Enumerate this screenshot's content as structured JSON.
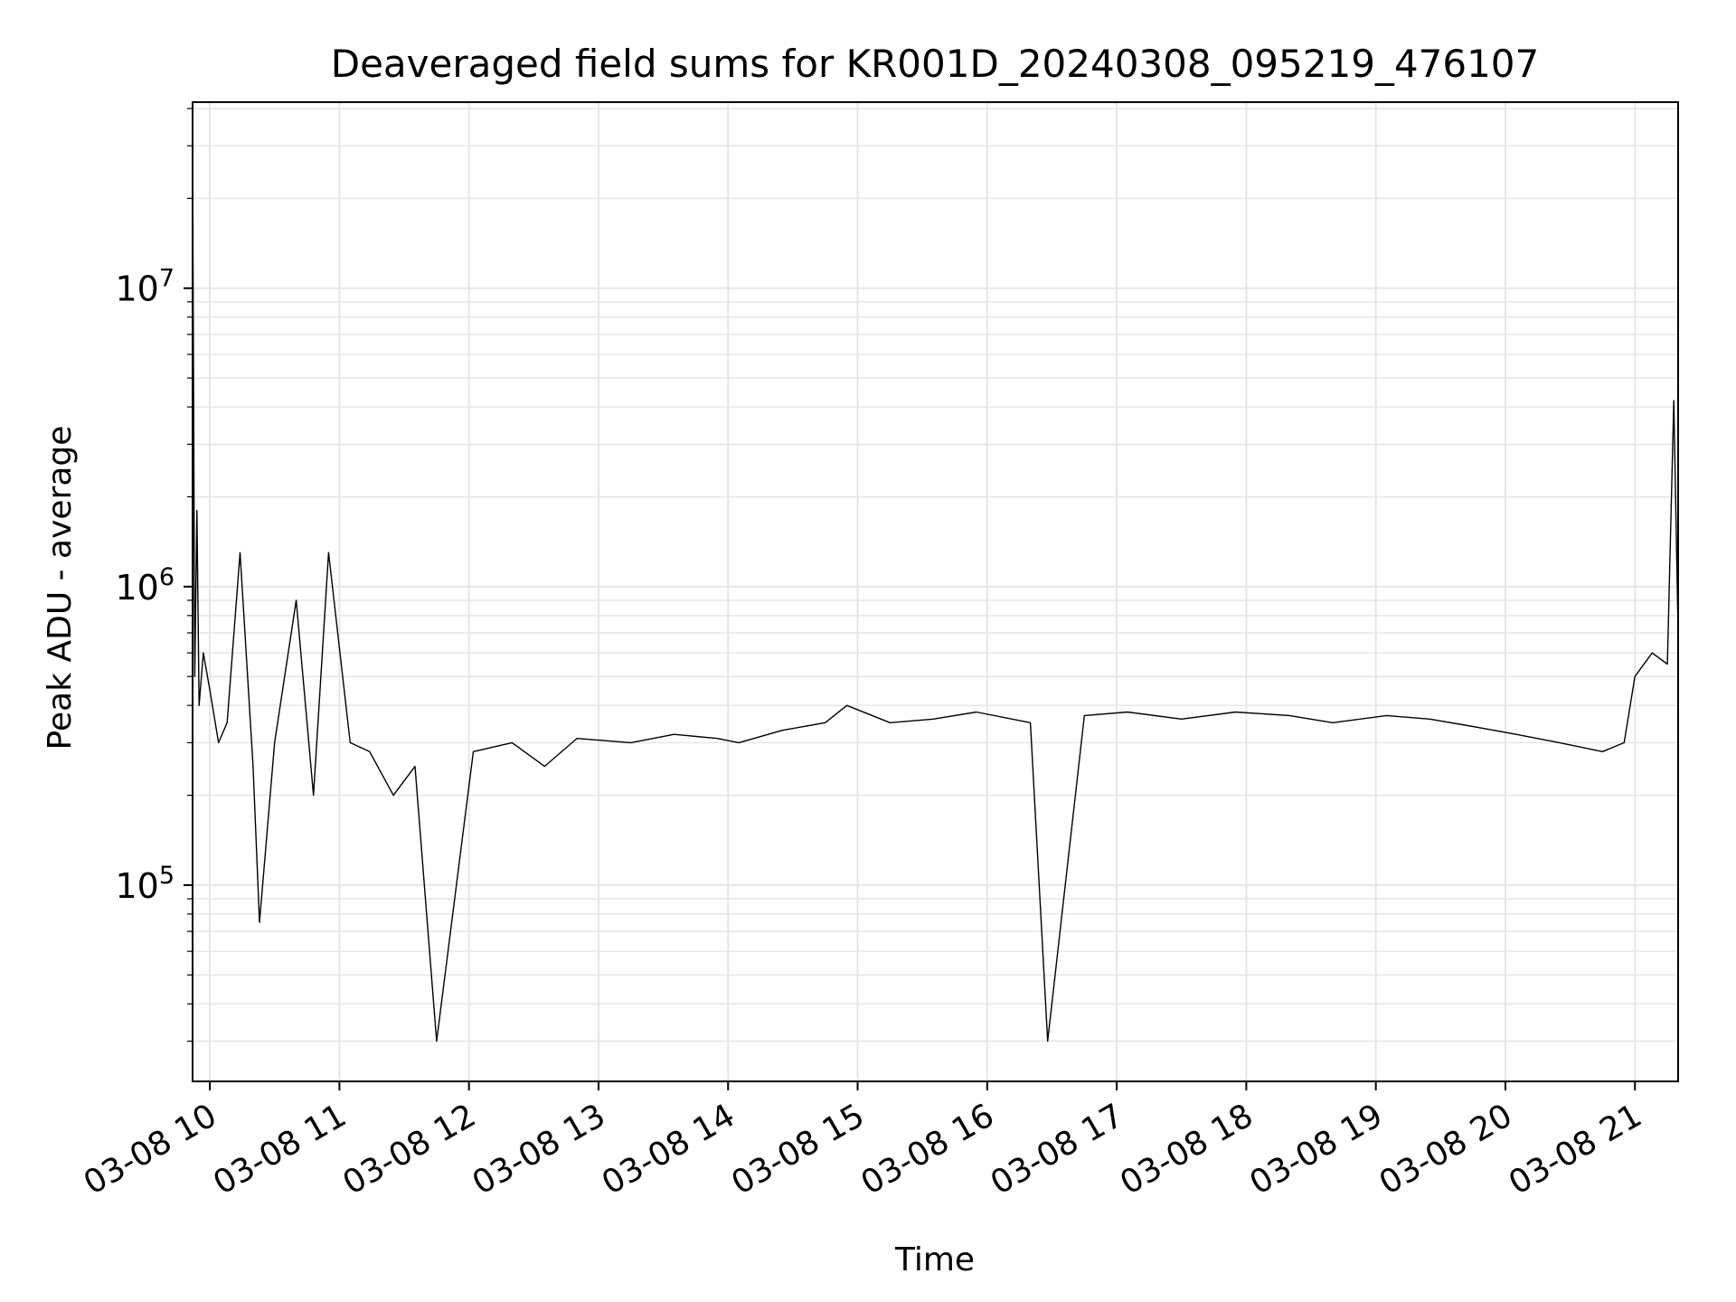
{
  "chart_data": {
    "type": "line",
    "title": "Deaveraged field sums for KR001D_20240308_095219_476107",
    "xlabel": "Time",
    "ylabel": "Peak ADU - average",
    "yscale": "log",
    "grid": true,
    "grid_minor": true,
    "line_color": "#000000",
    "grid_color": "#e6e6e6",
    "xlim": [
      "2024-03-08 09:52",
      "2024-03-08 21:20"
    ],
    "ylim": [
      22000,
      42000000
    ],
    "x_ticks": [
      {
        "t": "2024-03-08 10:00",
        "label": "03-08 10"
      },
      {
        "t": "2024-03-08 11:00",
        "label": "03-08 11"
      },
      {
        "t": "2024-03-08 12:00",
        "label": "03-08 12"
      },
      {
        "t": "2024-03-08 13:00",
        "label": "03-08 13"
      },
      {
        "t": "2024-03-08 14:00",
        "label": "03-08 14"
      },
      {
        "t": "2024-03-08 15:00",
        "label": "03-08 15"
      },
      {
        "t": "2024-03-08 16:00",
        "label": "03-08 16"
      },
      {
        "t": "2024-03-08 17:00",
        "label": "03-08 17"
      },
      {
        "t": "2024-03-08 18:00",
        "label": "03-08 18"
      },
      {
        "t": "2024-03-08 19:00",
        "label": "03-08 19"
      },
      {
        "t": "2024-03-08 20:00",
        "label": "03-08 20"
      },
      {
        "t": "2024-03-08 21:00",
        "label": "03-08 21"
      }
    ],
    "y_ticks": [
      {
        "value": 100000,
        "base": "10",
        "exp": "5"
      },
      {
        "value": 1000000,
        "base": "10",
        "exp": "6"
      },
      {
        "value": 10000000,
        "base": "10",
        "exp": "7"
      }
    ],
    "series": [
      {
        "x": [
          "2024-03-08 09:52",
          "2024-03-08 09:53",
          "2024-03-08 09:54",
          "2024-03-08 09:55",
          "2024-03-08 09:57",
          "2024-03-08 10:00",
          "2024-03-08 10:04",
          "2024-03-08 10:08",
          "2024-03-08 10:14",
          "2024-03-08 10:20",
          "2024-03-08 10:23",
          "2024-03-08 10:30",
          "2024-03-08 10:40",
          "2024-03-08 10:48",
          "2024-03-08 10:55",
          "2024-03-08 11:05",
          "2024-03-08 11:14",
          "2024-03-08 11:25",
          "2024-03-08 11:35",
          "2024-03-08 11:45",
          "2024-03-08 12:02",
          "2024-03-08 12:20",
          "2024-03-08 12:35",
          "2024-03-08 12:50",
          "2024-03-08 13:15",
          "2024-03-08 13:35",
          "2024-03-08 13:55",
          "2024-03-08 14:05",
          "2024-03-08 14:25",
          "2024-03-08 14:45",
          "2024-03-08 14:55",
          "2024-03-08 15:15",
          "2024-03-08 15:35",
          "2024-03-08 15:55",
          "2024-03-08 16:20",
          "2024-03-08 16:28",
          "2024-03-08 16:45",
          "2024-03-08 17:05",
          "2024-03-08 17:30",
          "2024-03-08 17:55",
          "2024-03-08 18:20",
          "2024-03-08 18:40",
          "2024-03-08 19:05",
          "2024-03-08 19:25",
          "2024-03-08 19:45",
          "2024-03-08 20:05",
          "2024-03-08 20:25",
          "2024-03-08 20:45",
          "2024-03-08 20:55",
          "2024-03-08 21:00",
          "2024-03-08 21:08",
          "2024-03-08 21:15",
          "2024-03-08 21:18",
          "2024-03-08 21:20"
        ],
        "y": [
          29000000,
          500000,
          1800000,
          400000,
          600000,
          450000,
          300000,
          350000,
          1300000,
          250000,
          75000,
          300000,
          900000,
          200000,
          1300000,
          300000,
          280000,
          200000,
          250000,
          30000,
          280000,
          300000,
          250000,
          310000,
          300000,
          320000,
          310000,
          300000,
          330000,
          350000,
          400000,
          350000,
          360000,
          380000,
          350000,
          30000,
          370000,
          380000,
          360000,
          380000,
          370000,
          350000,
          370000,
          360000,
          340000,
          320000,
          300000,
          280000,
          300000,
          500000,
          600000,
          550000,
          4200000,
          700000
        ]
      }
    ]
  }
}
